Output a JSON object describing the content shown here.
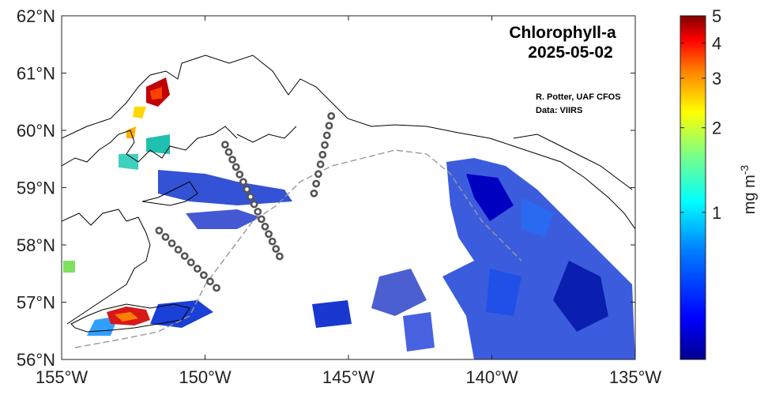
{
  "map": {
    "title_line1": "Chlorophyll-a",
    "title_line2": "2025-05-02",
    "credit_line1": "R. Potter, UAF CFOS",
    "credit_line2": "Data: VIIRS",
    "lon_range": [
      -155,
      -135
    ],
    "lat_range": [
      56,
      62
    ],
    "x_ticks": [
      {
        "value": -155,
        "label": "155°W"
      },
      {
        "value": -150,
        "label": "150°W"
      },
      {
        "value": -145,
        "label": "145°W"
      },
      {
        "value": -140,
        "label": "140°W"
      },
      {
        "value": -135,
        "label": "135°W"
      }
    ],
    "y_ticks": [
      {
        "value": 56,
        "label": "56°N"
      },
      {
        "value": 57,
        "label": "57°N"
      },
      {
        "value": 58,
        "label": "58°N"
      },
      {
        "value": 59,
        "label": "59°N"
      },
      {
        "value": 60,
        "label": "60°N"
      },
      {
        "value": 61,
        "label": "61°N"
      },
      {
        "value": 62,
        "label": "62°N"
      }
    ],
    "station_tracks": [
      {
        "name": "line-a",
        "start": [
          -151.6,
          58.25
        ],
        "end": [
          -149.6,
          57.25
        ],
        "count": 10
      },
      {
        "name": "line-b",
        "start": [
          -149.3,
          59.75
        ],
        "end": [
          -147.4,
          57.8
        ],
        "count": 16
      },
      {
        "name": "line-c",
        "start": [
          -145.6,
          60.25
        ],
        "end": [
          -146.2,
          58.9
        ],
        "count": 9
      }
    ],
    "station_color": "#555555"
  },
  "colorbar": {
    "label": "mg m",
    "label_superscript": "-3",
    "scale": "log",
    "range": [
      0.3,
      5
    ],
    "ticks": [
      {
        "value": 1,
        "label": "1"
      },
      {
        "value": 2,
        "label": "2"
      },
      {
        "value": 3,
        "label": "3"
      },
      {
        "value": 4,
        "label": "4"
      },
      {
        "value": 5,
        "label": "5"
      }
    ],
    "colormap": [
      "#00008f",
      "#0000ff",
      "#0080ff",
      "#00ffff",
      "#80ff80",
      "#ffff00",
      "#ff8000",
      "#ff0000",
      "#800000"
    ]
  }
}
